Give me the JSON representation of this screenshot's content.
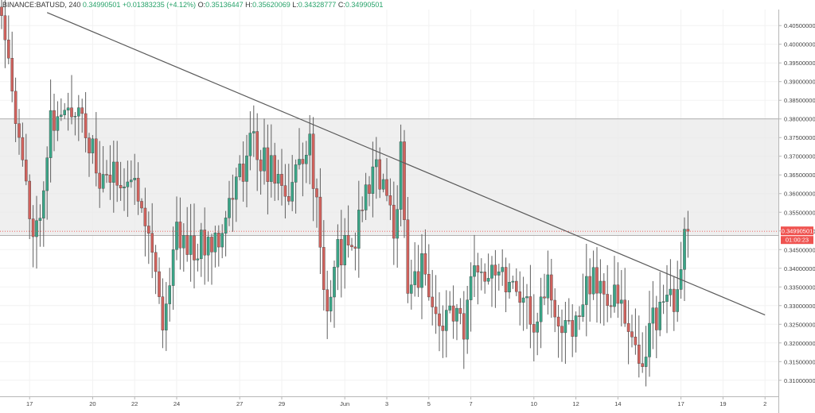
{
  "legend": {
    "symbol": "BINANCE:BATUSD, 240",
    "last": "0.34990501",
    "change": "+0.01383235 (+4.12%)",
    "o_label": "O:",
    "o_value": "0.35136447",
    "h_label": "H:",
    "h_value": "0.35620069",
    "l_label": "L:",
    "l_value": "0.34328777",
    "c_label": "C:",
    "c_value": "0.34990501"
  },
  "price_tag": {
    "price": "0.34990501",
    "countdown": "01:00:23"
  },
  "colors": {
    "up": "#26a269",
    "down": "#ef5350",
    "up_body": "#3aa587",
    "down_body": "#d1625d",
    "zone": "#e9e9e9",
    "grid": "#f2f2f2",
    "trendline": "#5a5a5a",
    "tag": "#ef5350"
  },
  "chart_data": {
    "type": "candlestick",
    "symbol": "BINANCE:BATUSD",
    "timeframe": "240",
    "y_ticks": [
      0.31,
      0.315,
      0.32,
      0.325,
      0.33,
      0.335,
      0.34,
      0.345,
      0.35,
      0.355,
      0.36,
      0.365,
      0.37,
      0.375,
      0.38,
      0.385,
      0.39,
      0.395,
      0.4,
      0.405
    ],
    "ylim": [
      0.3057,
      0.4093
    ],
    "x_labels": [
      {
        "label": "17",
        "i": 8
      },
      {
        "label": "20",
        "i": 26
      },
      {
        "label": "22",
        "i": 38
      },
      {
        "label": "24",
        "i": 50
      },
      {
        "label": "27",
        "i": 68
      },
      {
        "label": "29",
        "i": 80
      },
      {
        "label": "Jun",
        "i": 98
      },
      {
        "label": "3",
        "i": 110
      },
      {
        "label": "5",
        "i": 122
      },
      {
        "label": "7",
        "i": 134
      },
      {
        "label": "10",
        "i": 152
      },
      {
        "label": "12",
        "i": 164
      },
      {
        "label": "14",
        "i": 176
      },
      {
        "label": "17",
        "i": 194
      },
      {
        "label": "19",
        "i": 206
      },
      {
        "label": "2",
        "i": 218
      }
    ],
    "zone": {
      "top": 0.38,
      "bottom": 0.3488
    },
    "trendline": {
      "start": {
        "i": 13,
        "price": 0.4085
      },
      "end": {
        "i": 218,
        "price": 0.3275
      }
    },
    "last_price": 0.34990501,
    "seed": 11,
    "path": [
      [
        0,
        0.41
      ],
      [
        2,
        0.4
      ],
      [
        4,
        0.38
      ],
      [
        8,
        0.355
      ],
      [
        10,
        0.35
      ],
      [
        14,
        0.38
      ],
      [
        18,
        0.38
      ],
      [
        22,
        0.385
      ],
      [
        28,
        0.363
      ],
      [
        34,
        0.365
      ],
      [
        40,
        0.36
      ],
      [
        44,
        0.34
      ],
      [
        46,
        0.325
      ],
      [
        50,
        0.35
      ],
      [
        56,
        0.345
      ],
      [
        62,
        0.35
      ],
      [
        68,
        0.365
      ],
      [
        72,
        0.375
      ],
      [
        74,
        0.37
      ],
      [
        78,
        0.365
      ],
      [
        82,
        0.36
      ],
      [
        86,
        0.37
      ],
      [
        88,
        0.375
      ],
      [
        90,
        0.355
      ],
      [
        92,
        0.335
      ],
      [
        94,
        0.33
      ],
      [
        96,
        0.345
      ],
      [
        100,
        0.345
      ],
      [
        104,
        0.36
      ],
      [
        106,
        0.368
      ],
      [
        110,
        0.36
      ],
      [
        112,
        0.345
      ],
      [
        114,
        0.375
      ],
      [
        116,
        0.335
      ],
      [
        120,
        0.34
      ],
      [
        122,
        0.33
      ],
      [
        126,
        0.325
      ],
      [
        130,
        0.33
      ],
      [
        132,
        0.32
      ],
      [
        134,
        0.335
      ],
      [
        136,
        0.34
      ],
      [
        140,
        0.342
      ],
      [
        144,
        0.338
      ],
      [
        148,
        0.335
      ],
      [
        150,
        0.33
      ],
      [
        152,
        0.325
      ],
      [
        154,
        0.33
      ],
      [
        156,
        0.336
      ],
      [
        158,
        0.325
      ],
      [
        160,
        0.322
      ],
      [
        166,
        0.33
      ],
      [
        168,
        0.337
      ],
      [
        172,
        0.335
      ],
      [
        176,
        0.33
      ],
      [
        178,
        0.326
      ],
      [
        180,
        0.32
      ],
      [
        182,
        0.315
      ],
      [
        184,
        0.32
      ],
      [
        186,
        0.325
      ],
      [
        188,
        0.33
      ],
      [
        190,
        0.332
      ],
      [
        192,
        0.328
      ],
      [
        194,
        0.337
      ],
      [
        195,
        0.347
      ],
      [
        196,
        0.3499
      ]
    ]
  }
}
